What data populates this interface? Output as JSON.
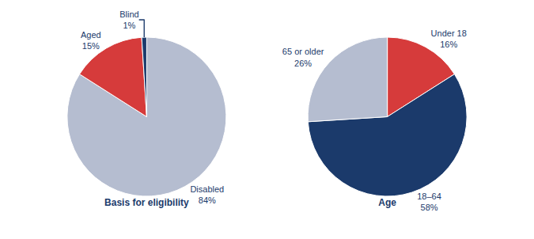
{
  "chart_data": [
    {
      "type": "pie",
      "title": "Basis for eligibility",
      "categories": [
        "Disabled",
        "Aged",
        "Blind"
      ],
      "values": [
        84,
        15,
        1
      ],
      "value_labels": [
        "84%",
        "15%",
        "1%"
      ],
      "data_labels": true,
      "colors": [
        "#b5bdd0",
        "#d63b3b",
        "#1b3a6b"
      ]
    },
    {
      "type": "pie",
      "title": "Age",
      "categories": [
        "Under 18",
        "18–64",
        "65 or older"
      ],
      "values": [
        16,
        58,
        26
      ],
      "value_labels": [
        "16%",
        "58%",
        "26%"
      ],
      "data_labels": true,
      "colors": [
        "#d63b3b",
        "#1b3a6b",
        "#b5bdd0"
      ]
    }
  ]
}
